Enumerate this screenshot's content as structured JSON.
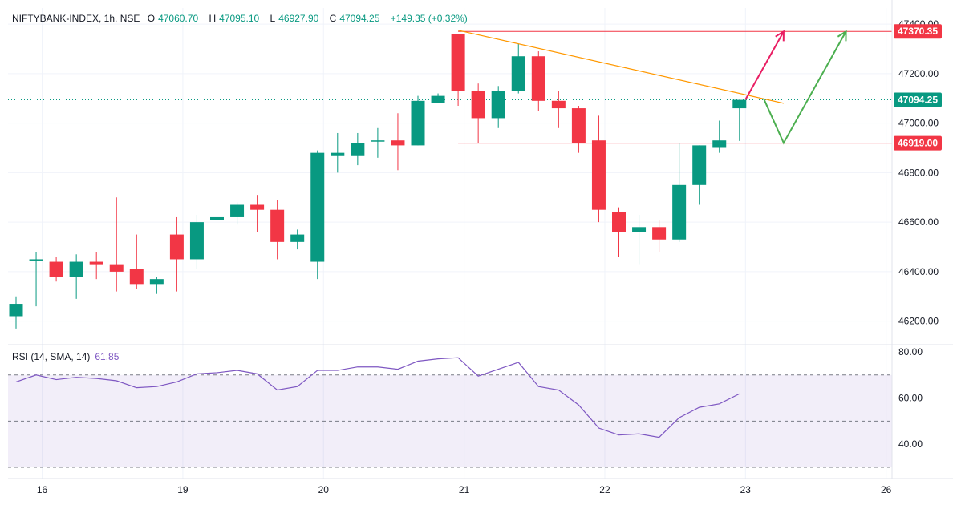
{
  "header": {
    "symbol": "NIFTYBANK-INDEX, 1h, NSE",
    "open_label": "O",
    "open": "47060.70",
    "high_label": "H",
    "high": "47095.10",
    "low_label": "L",
    "low": "46927.90",
    "close_label": "C",
    "close": "47094.25",
    "change": "+149.35 (+0.32%)"
  },
  "rsi_header": {
    "label": "RSI (14, SMA, 14)",
    "value": "61.85"
  },
  "colors": {
    "up": "#089981",
    "down": "#f23645",
    "rsi": "#7e57c2",
    "trend": "#ff9800",
    "arrow_up": "#e91e63",
    "arrow_green": "#4caf50",
    "level": "#f23645"
  },
  "chart_data": [
    {
      "type": "candlestick",
      "title": "NIFTYBANK-INDEX, 1h, NSE",
      "y_ticks": [
        "46200.00",
        "46400.00",
        "46600.00",
        "46800.00",
        "47000.00",
        "47200.00",
        "47400.00"
      ],
      "ylim": [
        46105,
        47465
      ],
      "x_ticks": [
        {
          "label": "16",
          "index": 1.3
        },
        {
          "label": "19",
          "index": 8.3
        },
        {
          "label": "20",
          "index": 15.3
        },
        {
          "label": "21",
          "index": 22.3
        },
        {
          "label": "22",
          "index": 29.3
        },
        {
          "label": "23",
          "index": 36.3
        },
        {
          "label": "26",
          "index": 43.3
        }
      ],
      "candles": [
        {
          "o": 46220,
          "h": 46300,
          "l": 46170,
          "c": 46270
        },
        {
          "o": 46450,
          "h": 46480,
          "l": 46260,
          "c": 46450
        },
        {
          "o": 46440,
          "h": 46460,
          "l": 46360,
          "c": 46380
        },
        {
          "o": 46380,
          "h": 46470,
          "l": 46290,
          "c": 46440
        },
        {
          "o": 46440,
          "h": 46480,
          "l": 46370,
          "c": 46430
        },
        {
          "o": 46430,
          "h": 46700,
          "l": 46320,
          "c": 46400
        },
        {
          "o": 46410,
          "h": 46550,
          "l": 46330,
          "c": 46350
        },
        {
          "o": 46350,
          "h": 46380,
          "l": 46310,
          "c": 46370
        },
        {
          "o": 46550,
          "h": 46620,
          "l": 46320,
          "c": 46450
        },
        {
          "o": 46450,
          "h": 46630,
          "l": 46410,
          "c": 46600
        },
        {
          "o": 46610,
          "h": 46690,
          "l": 46540,
          "c": 46620
        },
        {
          "o": 46620,
          "h": 46680,
          "l": 46590,
          "c": 46670
        },
        {
          "o": 46670,
          "h": 46710,
          "l": 46560,
          "c": 46650
        },
        {
          "o": 46650,
          "h": 46690,
          "l": 46450,
          "c": 46520
        },
        {
          "o": 46520,
          "h": 46570,
          "l": 46490,
          "c": 46550
        },
        {
          "o": 46440,
          "h": 46890,
          "l": 46370,
          "c": 46880
        },
        {
          "o": 46870,
          "h": 46960,
          "l": 46800,
          "c": 46880
        },
        {
          "o": 46870,
          "h": 46960,
          "l": 46830,
          "c": 46920
        },
        {
          "o": 46930,
          "h": 46980,
          "l": 46860,
          "c": 46930
        },
        {
          "o": 46930,
          "h": 47040,
          "l": 46810,
          "c": 46910
        },
        {
          "o": 46910,
          "h": 47110,
          "l": 46910,
          "c": 47090
        },
        {
          "o": 47080,
          "h": 47120,
          "l": 47080,
          "c": 47110
        },
        {
          "o": 47360,
          "h": 47360,
          "l": 47070,
          "c": 47130
        },
        {
          "o": 47130,
          "h": 47160,
          "l": 46920,
          "c": 47020
        },
        {
          "o": 47020,
          "h": 47150,
          "l": 46980,
          "c": 47130
        },
        {
          "o": 47130,
          "h": 47320,
          "l": 47120,
          "c": 47270
        },
        {
          "o": 47270,
          "h": 47290,
          "l": 47050,
          "c": 47090
        },
        {
          "o": 47090,
          "h": 47130,
          "l": 46980,
          "c": 47060
        },
        {
          "o": 47060,
          "h": 47070,
          "l": 46880,
          "c": 46920
        },
        {
          "o": 46930,
          "h": 47030,
          "l": 46600,
          "c": 46650
        },
        {
          "o": 46640,
          "h": 46660,
          "l": 46460,
          "c": 46560
        },
        {
          "o": 46560,
          "h": 46630,
          "l": 46430,
          "c": 46580
        },
        {
          "o": 46580,
          "h": 46610,
          "l": 46480,
          "c": 46530
        },
        {
          "o": 46530,
          "h": 46920,
          "l": 46520,
          "c": 46750
        },
        {
          "o": 46750,
          "h": 46910,
          "l": 46670,
          "c": 46910
        },
        {
          "o": 46900,
          "h": 47010,
          "l": 46880,
          "c": 46930
        },
        {
          "o": 47060,
          "h": 47095,
          "l": 46928,
          "c": 47094
        }
      ],
      "levels": [
        {
          "label": "47370.35",
          "value": 47370.35,
          "color": "#f23645",
          "from": 22
        },
        {
          "label": "46919.00",
          "value": 46919.0,
          "color": "#f23645",
          "from": 22
        }
      ],
      "last_price": {
        "label": "47094.25",
        "value": 47094.25,
        "color": "#089981"
      },
      "trendline": {
        "from": {
          "index": 22,
          "value": 47375
        },
        "to": {
          "index": 38.2,
          "value": 47080
        }
      },
      "arrows": [
        {
          "color": "#e91e63",
          "points": [
            {
              "index": 36.3,
              "value": 47095
            },
            {
              "index": 38.2,
              "value": 47370
            }
          ]
        },
        {
          "color": "#4caf50",
          "points": [
            {
              "index": 37.2,
              "value": 47100
            },
            {
              "index": 38.2,
              "value": 46920
            },
            {
              "index": 41.3,
              "value": 47370
            }
          ]
        }
      ]
    },
    {
      "type": "line",
      "title": "RSI (14, SMA, 14)",
      "y_ticks": [
        "40.00",
        "60.00",
        "80.00"
      ],
      "ylim": [
        30,
        80
      ],
      "bands": {
        "upper": 70,
        "middle": 50,
        "lower": 30
      },
      "values": [
        67,
        70,
        68,
        69,
        68.5,
        67.5,
        64.5,
        65,
        67,
        70.5,
        71,
        72,
        70.5,
        63.5,
        65,
        72,
        72,
        73.5,
        73.5,
        72.5,
        76,
        77,
        77.5,
        69.5,
        72.5,
        75.5,
        65,
        63.5,
        57,
        47,
        44,
        44.5,
        43,
        51.5,
        56,
        57.5,
        61.85
      ]
    }
  ]
}
